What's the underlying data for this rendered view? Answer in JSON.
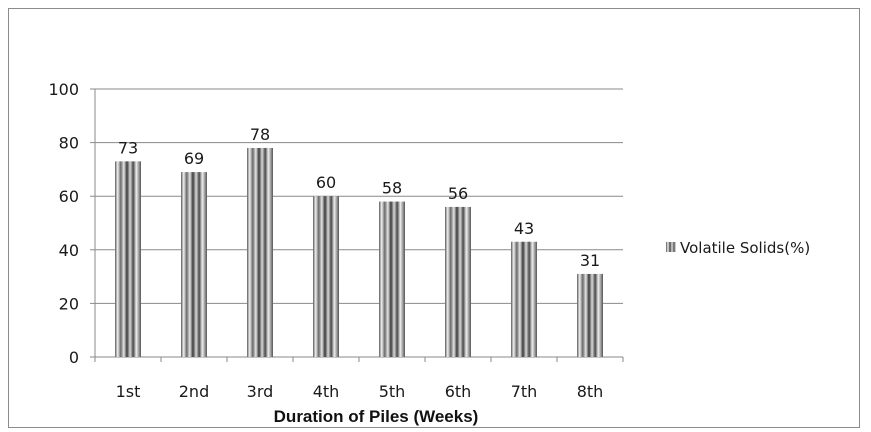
{
  "chart_data": {
    "type": "bar",
    "categories": [
      "1st",
      "2nd",
      "3rd",
      "4th",
      "5th",
      "6th",
      "7th",
      "8th"
    ],
    "series": [
      {
        "name": "Volatile Solids(%)",
        "values": [
          73,
          69,
          78,
          60,
          58,
          56,
          43,
          31
        ]
      }
    ],
    "title": "",
    "xlabel": "Duration of Piles (Weeks)",
    "ylabel": "",
    "ylim": [
      0,
      100
    ],
    "yticks": [
      0,
      20,
      40,
      60,
      80,
      100
    ],
    "grid": true,
    "legend_position": "right",
    "data_labels": true
  }
}
